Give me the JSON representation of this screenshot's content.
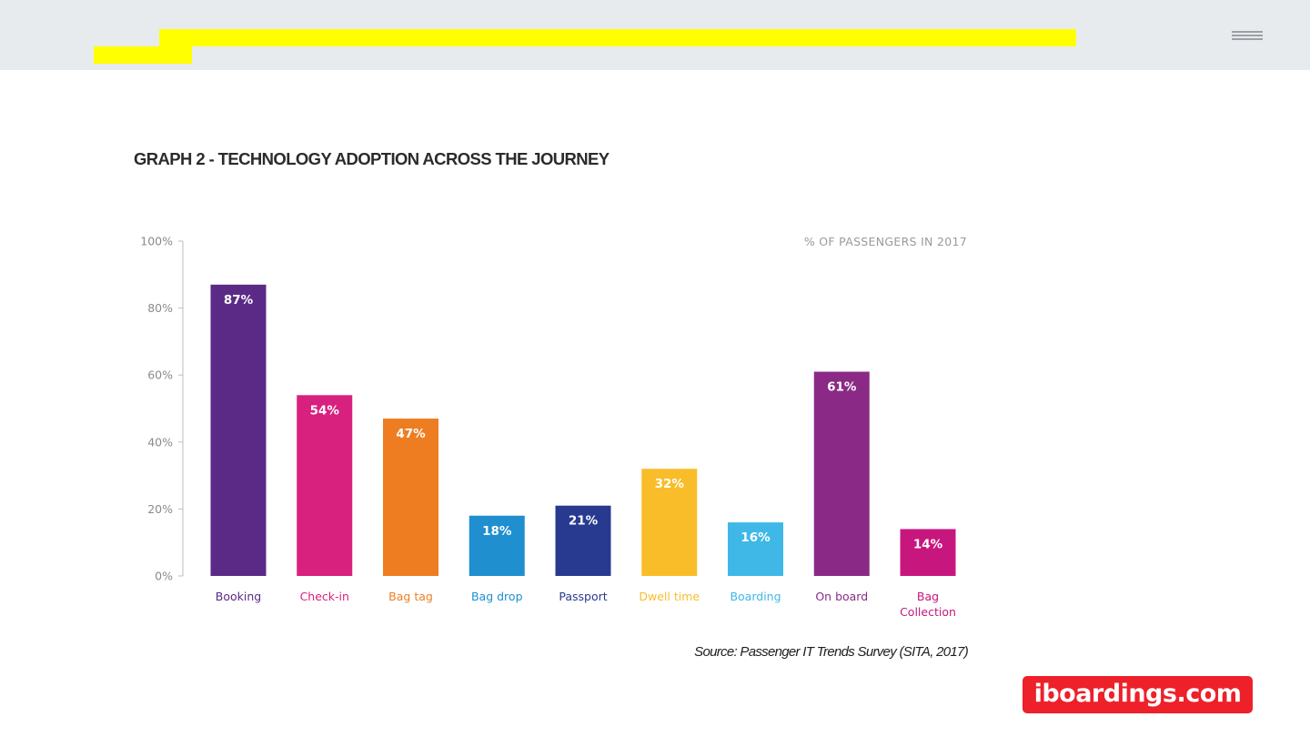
{
  "header": {
    "menu_icon": "hamburger-menu-icon"
  },
  "chart_data": {
    "type": "bar",
    "title": "GRAPH 2 - TECHNOLOGY ADOPTION ACROSS THE JOURNEY",
    "subtitle": "% OF PASSENGERS IN 2017",
    "xlabel": "",
    "ylabel": "",
    "ylim": [
      0,
      100
    ],
    "y_ticks": [
      {
        "value": 0,
        "label": "0%"
      },
      {
        "value": 20,
        "label": "20%"
      },
      {
        "value": 40,
        "label": "40%"
      },
      {
        "value": 60,
        "label": "60%"
      },
      {
        "value": 80,
        "label": "80%"
      },
      {
        "value": 100,
        "label": "100%"
      }
    ],
    "grid": false,
    "legend": "none",
    "bars": [
      {
        "category": [
          "Booking"
        ],
        "value": 87,
        "label": "87%",
        "color": "#5b2a86",
        "label_color": "#5b2a86"
      },
      {
        "category": [
          "Check-in"
        ],
        "value": 54,
        "label": "54%",
        "color": "#d8207f",
        "label_color": "#d8207f"
      },
      {
        "category": [
          "Bag tag"
        ],
        "value": 47,
        "label": "47%",
        "color": "#ee7d22",
        "label_color": "#ee7d22"
      },
      {
        "category": [
          "Bag drop"
        ],
        "value": 18,
        "label": "18%",
        "color": "#1f8fd0",
        "label_color": "#1f8fd0"
      },
      {
        "category": [
          "Passport"
        ],
        "value": 21,
        "label": "21%",
        "color": "#283a8f",
        "label_color": "#283a8f"
      },
      {
        "category": [
          "Dwell time"
        ],
        "value": 32,
        "label": "32%",
        "color": "#f9bd2a",
        "label_color": "#f9bd2a"
      },
      {
        "category": [
          "Boarding"
        ],
        "value": 16,
        "label": "16%",
        "color": "#3fb8e8",
        "label_color": "#3fb8e8"
      },
      {
        "category": [
          "On board"
        ],
        "value": 61,
        "label": "61%",
        "color": "#8a2a86",
        "label_color": "#8a2a86"
      },
      {
        "category": [
          "Bag",
          "Collection"
        ],
        "value": 14,
        "label": "14%",
        "color": "#c7177e",
        "label_color": "#c7177e"
      }
    ]
  },
  "footer": {
    "source": "Source: Passenger IT Trends Survey (SITA, 2017)",
    "brand": "iboardings.com"
  }
}
